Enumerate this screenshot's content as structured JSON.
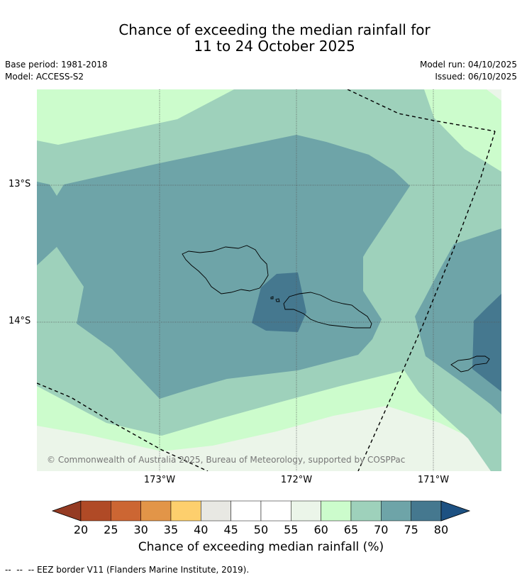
{
  "title": {
    "line1": "Chance of exceeding the median rainfall for",
    "line2": "11 to 24 October 2025"
  },
  "meta": {
    "base_period": "Base period: 1981-2018",
    "model": "Model: ACCESS-S2",
    "model_run": "Model run: 04/10/2025",
    "issued": "Issued: 06/10/2025"
  },
  "map": {
    "lat_labels": [
      "13°S",
      "14°S"
    ],
    "lon_labels": [
      "173°W",
      "172°W",
      "171°W"
    ],
    "credit": "© Commonwealth of Australia 2025, Bureau of Meteorology, supported by COSPPac"
  },
  "colorbar": {
    "ticks": [
      "20",
      "25",
      "30",
      "35",
      "40",
      "45",
      "50",
      "55",
      "60",
      "65",
      "70",
      "75",
      "80"
    ],
    "colors": [
      "#b04a26",
      "#cc6633",
      "#e29548",
      "#fdcf6d",
      "#e8e8e3",
      "#ffffff",
      "#ffffff",
      "#ebf5e9",
      "#ccfccc",
      "#9ed1bb",
      "#6ea4a8",
      "#45788f"
    ],
    "below_color": "#953b23",
    "above_color": "#1d5182",
    "label": "Chance of exceeding median rainfall (%)"
  },
  "eez_note": "--  --  -- EEZ border V11 (Flanders Marine Institute, 2019)."
}
